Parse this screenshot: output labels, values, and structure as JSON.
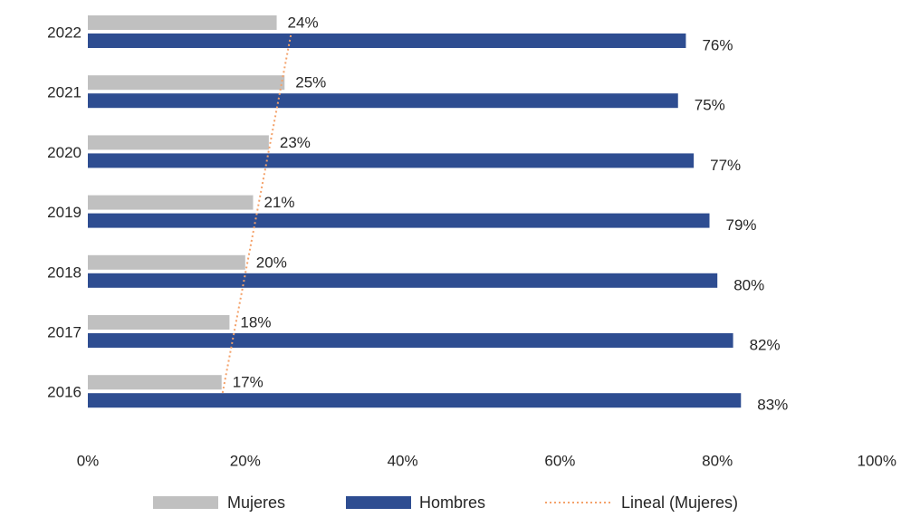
{
  "chart_data": {
    "type": "bar",
    "orientation": "horizontal",
    "categories": [
      "2022",
      "2021",
      "2020",
      "2019",
      "2018",
      "2017",
      "2016"
    ],
    "series": [
      {
        "name": "Mujeres",
        "values": [
          24,
          25,
          23,
          21,
          20,
          18,
          17
        ],
        "labels": [
          "24%",
          "25%",
          "23%",
          "21%",
          "20%",
          "18%",
          "17%"
        ],
        "color": "#c0c0c0"
      },
      {
        "name": "Hombres",
        "values": [
          76,
          75,
          77,
          79,
          80,
          82,
          83
        ],
        "labels": [
          "76%",
          "75%",
          "77%",
          "79%",
          "80%",
          "82%",
          "83%"
        ],
        "color": "#2e4d91"
      }
    ],
    "trendline": {
      "name": "Lineal (Mujeres)",
      "series": "Mujeres",
      "color": "#f4a26b",
      "style": "dotted"
    },
    "x_ticks": [
      "0%",
      "20%",
      "40%",
      "60%",
      "80%",
      "100%"
    ],
    "xlim": [
      0,
      100
    ],
    "grid": false,
    "legend": "bottom",
    "title": "",
    "xlabel": "",
    "ylabel": ""
  }
}
